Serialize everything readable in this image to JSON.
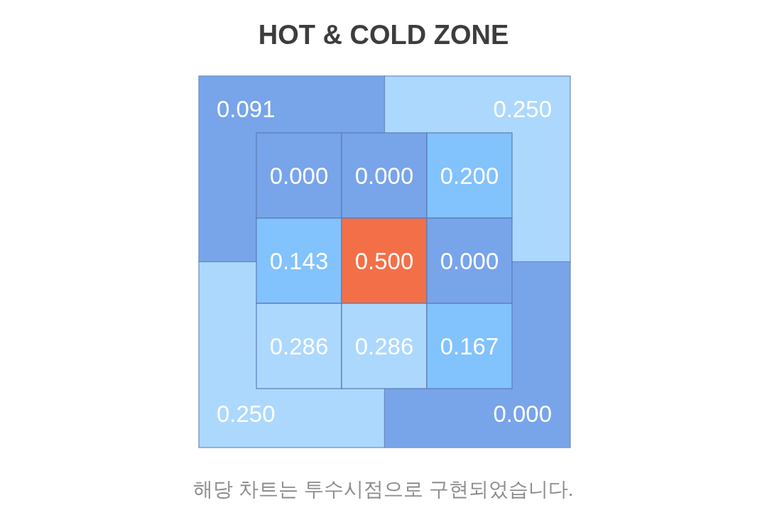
{
  "chart_data": [
    {
      "type": "heatmap",
      "title": "HOT & COLD ZONE",
      "categories": [
        null,
        null
      ],
      "y_categories": [
        null,
        null
      ],
      "cells": [
        [
          0.091,
          0.25
        ],
        [
          0.25,
          0
        ]
      ],
      "cell_labels": [
        [
          "0.091",
          "0.250"
        ],
        [
          "0.250",
          "0.000"
        ]
      ],
      "colors": [
        [
          "#78a4ea",
          "#acd8fd"
        ],
        [
          "#acd8fd",
          "#78a4ea"
        ]
      ],
      "annotations": [
        "해당 차트는 투수시점으로 구현되었습니다."
      ]
    },
    {
      "type": "heatmap",
      "categories": [
        null,
        null,
        null
      ],
      "y_categories": [
        null,
        null,
        null
      ],
      "cells": [
        [
          0,
          0,
          0.2
        ],
        [
          0.143,
          0.5,
          0
        ],
        [
          0.286,
          0.286,
          0.167
        ]
      ],
      "cell_labels": [
        [
          "0.000",
          "0.000",
          "0.200"
        ],
        [
          "0.143",
          "0.500",
          "0.000"
        ],
        [
          "0.286",
          "0.286",
          "0.167"
        ]
      ],
      "colors": [
        [
          "#78a4ea",
          "#78a4ea",
          "#82c2fd"
        ],
        [
          "#82c2fd",
          "#f36f47",
          "#78a4ea"
        ],
        [
          "#acd8fd",
          "#acd8fd",
          "#82c2fd"
        ]
      ]
    }
  ]
}
